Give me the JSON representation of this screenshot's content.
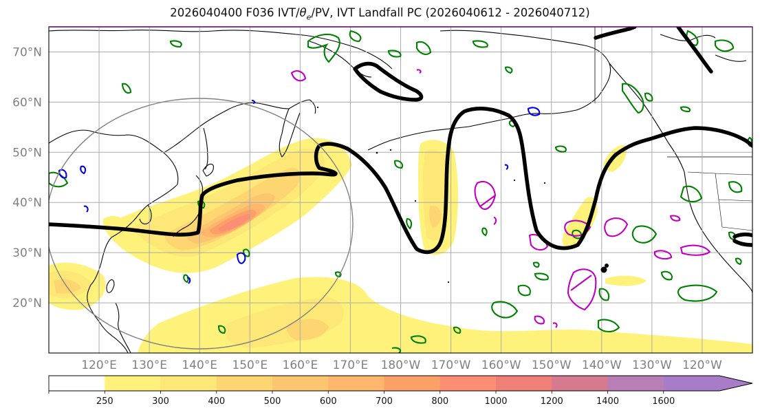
{
  "title": {
    "prefix": "2026040400 F036 IVT/",
    "theta": "θ",
    "sub": "e",
    "suffix": "/PV, IVT Landfall PC (2026040612 - 2026040712)"
  },
  "axes": {
    "lat_labels": [
      "70°N",
      "60°N",
      "50°N",
      "40°N",
      "30°N",
      "20°N"
    ],
    "lat_values": [
      70,
      60,
      50,
      40,
      30,
      20
    ],
    "lon_labels": [
      "120°E",
      "130°E",
      "140°E",
      "150°E",
      "160°E",
      "170°E",
      "180°W",
      "170°W",
      "160°W",
      "150°W",
      "140°W",
      "130°W",
      "120°W"
    ],
    "lon_values": [
      120,
      130,
      140,
      150,
      160,
      170,
      180,
      190,
      200,
      210,
      220,
      230,
      240
    ],
    "lat_range": [
      10,
      75
    ],
    "lon_range": [
      110,
      250
    ],
    "grid": true
  },
  "colorbar": {
    "levels": [
      "250",
      "300",
      "400",
      "500",
      "600",
      "700",
      "800",
      "1000",
      "1200",
      "1400",
      "1600"
    ],
    "colors": [
      "#ffffff",
      "#fff27a",
      "#fde776",
      "#fdd672",
      "#fcc670",
      "#fdb66c",
      "#fca068",
      "#fb8e73",
      "#f08077",
      "#d57a8f",
      "#b77fb6",
      "#a87cc6"
    ],
    "extend": "max",
    "unit": ""
  },
  "styles": {
    "ivt_colors": [
      "#fff27a",
      "#fde776",
      "#fdd672",
      "#fcc670",
      "#fdb66c",
      "#fca068",
      "#fb8e73"
    ],
    "pv_color": "#000000",
    "theta_green": "#008000",
    "theta_blue": "#0000ee",
    "theta_magenta": "#c000c0",
    "circle_color": "#808080",
    "coast_color": "#000000"
  }
}
